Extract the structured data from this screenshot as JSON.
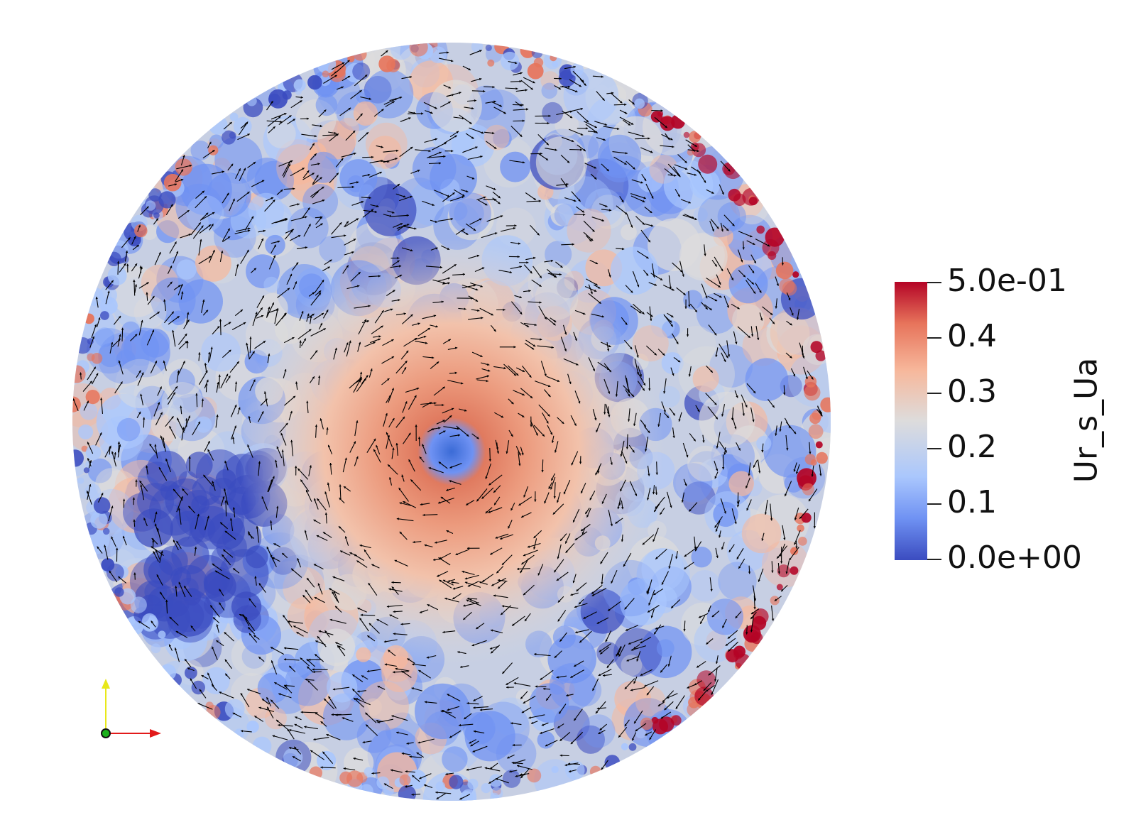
{
  "scalar_bar": {
    "title": "Ur_s_Ua",
    "labels": [
      "5.0e-01",
      "0.4",
      "0.3",
      "0.2",
      "0.1",
      "0.0e+00"
    ],
    "range": [
      0.0,
      0.5
    ]
  },
  "colormap": {
    "name": "Cool to Warm",
    "colors": [
      "#3b4cc0",
      "#6f92f3",
      "#aac7fd",
      "#dddcdc",
      "#f7b89c",
      "#e7745b",
      "#b40426"
    ]
  },
  "axes": {
    "x_color": "#e21a1a",
    "y_color": "#e8e81a",
    "origin_color": "#1ab01a"
  },
  "field": {
    "shape": "disk",
    "vector_color": "#000000"
  }
}
